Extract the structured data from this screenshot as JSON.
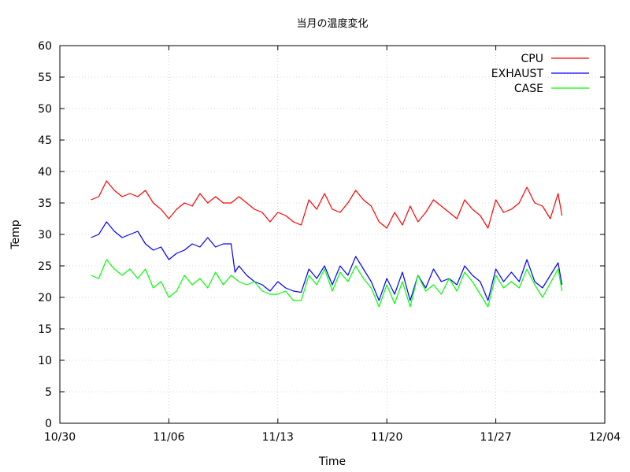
{
  "chart_data": {
    "type": "line",
    "title": "当月の温度変化",
    "xlabel": "Time",
    "ylabel": "Temp",
    "x_is_date": true,
    "xlim": [
      "10/30",
      "12/04"
    ],
    "x_ticks": [
      "10/30",
      "11/06",
      "11/13",
      "11/20",
      "11/27",
      "12/04"
    ],
    "ylim": [
      0,
      60
    ],
    "y_ticks": [
      0,
      5,
      10,
      15,
      20,
      25,
      30,
      35,
      40,
      45,
      50,
      55,
      60
    ],
    "grid": true,
    "legend_position": "top-right",
    "series": [
      {
        "name": "CPU",
        "color": "#ff0000",
        "points": [
          [
            "11/01",
            35.5
          ],
          [
            "11/01 12:00",
            36.0
          ],
          [
            "11/02",
            38.5
          ],
          [
            "11/02 12:00",
            37.0
          ],
          [
            "11/03",
            36.0
          ],
          [
            "11/03 12:00",
            36.5
          ],
          [
            "11/04",
            36.0
          ],
          [
            "11/04 12:00",
            37.0
          ],
          [
            "11/05",
            35.0
          ],
          [
            "11/05 12:00",
            34.0
          ],
          [
            "11/06",
            32.5
          ],
          [
            "11/06 12:00",
            34.0
          ],
          [
            "11/07",
            35.0
          ],
          [
            "11/07 12:00",
            34.5
          ],
          [
            "11/08",
            36.5
          ],
          [
            "11/08 12:00",
            35.0
          ],
          [
            "11/09",
            36.0
          ],
          [
            "11/09 12:00",
            35.0
          ],
          [
            "11/10",
            35.0
          ],
          [
            "11/10 12:00",
            36.0
          ],
          [
            "11/11",
            35.0
          ],
          [
            "11/11 12:00",
            34.0
          ],
          [
            "11/12",
            33.5
          ],
          [
            "11/12 12:00",
            32.0
          ],
          [
            "11/13",
            33.5
          ],
          [
            "11/13 12:00",
            33.0
          ],
          [
            "11/14",
            32.0
          ],
          [
            "11/14 12:00",
            31.5
          ],
          [
            "11/15",
            35.5
          ],
          [
            "11/15 12:00",
            34.0
          ],
          [
            "11/16",
            36.5
          ],
          [
            "11/16 12:00",
            34.0
          ],
          [
            "11/17",
            33.5
          ],
          [
            "11/17 12:00",
            35.0
          ],
          [
            "11/18",
            37.0
          ],
          [
            "11/18 12:00",
            35.5
          ],
          [
            "11/19",
            34.5
          ],
          [
            "11/19 12:00",
            32.0
          ],
          [
            "11/20",
            31.0
          ],
          [
            "11/20 12:00",
            33.5
          ],
          [
            "11/21",
            31.5
          ],
          [
            "11/21 12:00",
            34.5
          ],
          [
            "11/22",
            32.0
          ],
          [
            "11/22 12:00",
            33.5
          ],
          [
            "11/23",
            35.5
          ],
          [
            "11/23 12:00",
            34.5
          ],
          [
            "11/24",
            33.5
          ],
          [
            "11/24 12:00",
            32.5
          ],
          [
            "11/25",
            35.5
          ],
          [
            "11/25 12:00",
            34.0
          ],
          [
            "11/26",
            33.0
          ],
          [
            "11/26 12:00",
            31.0
          ],
          [
            "11/27",
            35.5
          ],
          [
            "11/27 12:00",
            33.5
          ],
          [
            "11/28",
            34.0
          ],
          [
            "11/28 12:00",
            35.0
          ],
          [
            "11/29",
            37.5
          ],
          [
            "11/29 12:00",
            35.0
          ],
          [
            "11/30",
            34.5
          ],
          [
            "11/30 12:00",
            32.5
          ],
          [
            "12/01",
            36.5
          ],
          [
            "12/01 06:00",
            33.0
          ]
        ]
      },
      {
        "name": "EXHAUST",
        "color": "#0000ff",
        "points": [
          [
            "11/01",
            29.5
          ],
          [
            "11/01 12:00",
            30.0
          ],
          [
            "11/02",
            32.0
          ],
          [
            "11/02 12:00",
            30.5
          ],
          [
            "11/03",
            29.5
          ],
          [
            "11/03 12:00",
            30.0
          ],
          [
            "11/04",
            30.5
          ],
          [
            "11/04 12:00",
            28.5
          ],
          [
            "11/05",
            27.5
          ],
          [
            "11/05 12:00",
            28.0
          ],
          [
            "11/06",
            26.0
          ],
          [
            "11/06 12:00",
            27.0
          ],
          [
            "11/07",
            27.5
          ],
          [
            "11/07 12:00",
            28.5
          ],
          [
            "11/08",
            28.0
          ],
          [
            "11/08 12:00",
            29.5
          ],
          [
            "11/09",
            28.0
          ],
          [
            "11/09 12:00",
            28.5
          ],
          [
            "11/10",
            28.5
          ],
          [
            "11/10 06:00",
            24.0
          ],
          [
            "11/10 12:00",
            25.0
          ],
          [
            "11/11",
            23.5
          ],
          [
            "11/11 12:00",
            22.5
          ],
          [
            "11/12",
            22.0
          ],
          [
            "11/12 12:00",
            21.0
          ],
          [
            "11/13",
            22.5
          ],
          [
            "11/13 12:00",
            21.5
          ],
          [
            "11/14",
            21.0
          ],
          [
            "11/14 12:00",
            20.8
          ],
          [
            "11/15",
            24.5
          ],
          [
            "11/15 12:00",
            23.0
          ],
          [
            "11/16",
            25.0
          ],
          [
            "11/16 12:00",
            22.0
          ],
          [
            "11/17",
            25.0
          ],
          [
            "11/17 12:00",
            23.5
          ],
          [
            "11/18",
            26.5
          ],
          [
            "11/18 12:00",
            24.5
          ],
          [
            "11/19",
            22.5
          ],
          [
            "11/19 12:00",
            19.5
          ],
          [
            "11/20",
            23.0
          ],
          [
            "11/20 12:00",
            20.5
          ],
          [
            "11/21",
            24.0
          ],
          [
            "11/21 12:00",
            19.5
          ],
          [
            "11/22",
            23.5
          ],
          [
            "11/22 12:00",
            21.5
          ],
          [
            "11/23",
            24.5
          ],
          [
            "11/23 12:00",
            22.5
          ],
          [
            "11/24",
            23.0
          ],
          [
            "11/24 12:00",
            22.0
          ],
          [
            "11/25",
            25.0
          ],
          [
            "11/25 12:00",
            23.5
          ],
          [
            "11/26",
            22.5
          ],
          [
            "11/26 12:00",
            19.5
          ],
          [
            "11/27",
            24.5
          ],
          [
            "11/27 12:00",
            22.5
          ],
          [
            "11/28",
            24.0
          ],
          [
            "11/28 12:00",
            22.5
          ],
          [
            "11/29",
            26.0
          ],
          [
            "11/29 12:00",
            22.5
          ],
          [
            "11/30",
            21.5
          ],
          [
            "12/01",
            25.5
          ],
          [
            "12/01 06:00",
            22.0
          ]
        ]
      },
      {
        "name": "CASE",
        "color": "#00ff00",
        "points": [
          [
            "11/01",
            23.5
          ],
          [
            "11/01 12:00",
            23.0
          ],
          [
            "11/02",
            26.0
          ],
          [
            "11/02 12:00",
            24.5
          ],
          [
            "11/03",
            23.5
          ],
          [
            "11/03 12:00",
            24.5
          ],
          [
            "11/04",
            23.0
          ],
          [
            "11/04 12:00",
            24.5
          ],
          [
            "11/05",
            21.5
          ],
          [
            "11/05 12:00",
            22.5
          ],
          [
            "11/06",
            20.0
          ],
          [
            "11/06 12:00",
            21.0
          ],
          [
            "11/07",
            23.5
          ],
          [
            "11/07 12:00",
            22.0
          ],
          [
            "11/08",
            23.0
          ],
          [
            "11/08 12:00",
            21.5
          ],
          [
            "11/09",
            24.0
          ],
          [
            "11/09 12:00",
            22.0
          ],
          [
            "11/10",
            23.5
          ],
          [
            "11/10 12:00",
            22.5
          ],
          [
            "11/11",
            22.0
          ],
          [
            "11/11 12:00",
            22.5
          ],
          [
            "11/12",
            21.0
          ],
          [
            "11/12 12:00",
            20.5
          ],
          [
            "11/13",
            20.5
          ],
          [
            "11/13 12:00",
            21.0
          ],
          [
            "11/14",
            19.5
          ],
          [
            "11/14 12:00",
            19.5
          ],
          [
            "11/15",
            23.5
          ],
          [
            "11/15 12:00",
            22.0
          ],
          [
            "11/16",
            24.5
          ],
          [
            "11/16 12:00",
            21.0
          ],
          [
            "11/17",
            24.0
          ],
          [
            "11/17 12:00",
            22.5
          ],
          [
            "11/18",
            25.0
          ],
          [
            "11/18 12:00",
            23.0
          ],
          [
            "11/19",
            21.5
          ],
          [
            "11/19 12:00",
            18.5
          ],
          [
            "11/20",
            22.0
          ],
          [
            "11/20 12:00",
            19.0
          ],
          [
            "11/21",
            22.5
          ],
          [
            "11/21 12:00",
            18.5
          ],
          [
            "11/22",
            23.5
          ],
          [
            "11/22 12:00",
            21.0
          ],
          [
            "11/23",
            22.0
          ],
          [
            "11/23 12:00",
            20.5
          ],
          [
            "11/24",
            23.0
          ],
          [
            "11/24 12:00",
            21.0
          ],
          [
            "11/25",
            24.0
          ],
          [
            "11/25 12:00",
            22.5
          ],
          [
            "11/26",
            20.5
          ],
          [
            "11/26 12:00",
            18.5
          ],
          [
            "11/27",
            23.5
          ],
          [
            "11/27 12:00",
            21.5
          ],
          [
            "11/28",
            22.5
          ],
          [
            "11/28 12:00",
            21.5
          ],
          [
            "11/29",
            24.5
          ],
          [
            "11/29 12:00",
            22.0
          ],
          [
            "11/30",
            20.0
          ],
          [
            "12/01",
            24.5
          ],
          [
            "12/01 06:00",
            21.0
          ]
        ]
      }
    ]
  }
}
